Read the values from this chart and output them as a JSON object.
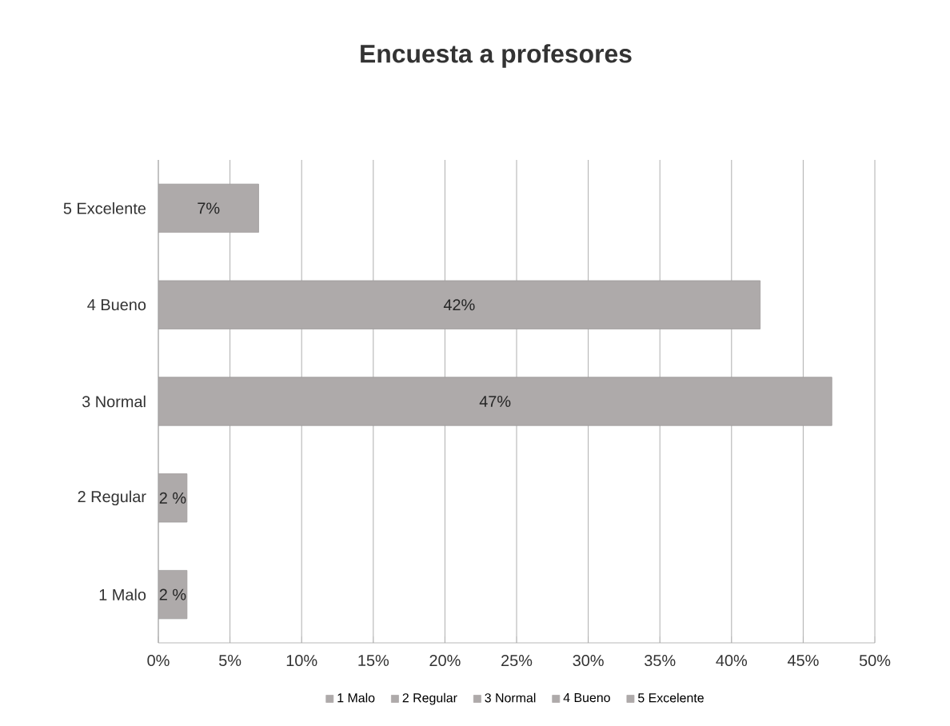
{
  "chart_data": {
    "type": "bar",
    "orientation": "horizontal",
    "title": "Encuesta a profesores",
    "categories": [
      "5 Excelente",
      "4 Bueno",
      "3 Normal",
      "2 Regular",
      "1 Malo"
    ],
    "series": [
      {
        "name": "1 Malo",
        "color": "#aeaaaa",
        "values": [
          null,
          null,
          null,
          null,
          2
        ],
        "value_labels": [
          null,
          null,
          null,
          null,
          "2 %"
        ]
      },
      {
        "name": "2 Regular",
        "color": "#aeaaaa",
        "values": [
          null,
          null,
          null,
          2,
          null
        ],
        "value_labels": [
          null,
          null,
          null,
          "2 %",
          null
        ]
      },
      {
        "name": "3 Normal",
        "color": "#aeaaaa",
        "values": [
          null,
          null,
          47,
          null,
          null
        ],
        "value_labels": [
          null,
          null,
          "47%",
          null,
          null
        ]
      },
      {
        "name": "4 Bueno",
        "color": "#aeaaaa",
        "values": [
          null,
          42,
          null,
          null,
          null
        ],
        "value_labels": [
          null,
          "42%",
          null,
          null,
          null
        ]
      },
      {
        "name": "5 Excelente",
        "color": "#aeaaaa",
        "values": [
          7,
          null,
          null,
          null,
          null
        ],
        "value_labels": [
          "7%",
          null,
          null,
          null,
          null
        ]
      }
    ],
    "xlim": [
      0,
      50
    ],
    "xticks": [
      {
        "value": 0,
        "label": "0%"
      },
      {
        "value": 5,
        "label": "5%"
      },
      {
        "value": 10,
        "label": "10%"
      },
      {
        "value": 15,
        "label": "15%"
      },
      {
        "value": 20,
        "label": "20%"
      },
      {
        "value": 25,
        "label": "25%"
      },
      {
        "value": 30,
        "label": "30%"
      },
      {
        "value": 35,
        "label": "35%"
      },
      {
        "value": 40,
        "label": "40%"
      },
      {
        "value": 45,
        "label": "45%"
      },
      {
        "value": 50,
        "label": "50%"
      }
    ],
    "grid": "x",
    "legend": "bottom"
  }
}
